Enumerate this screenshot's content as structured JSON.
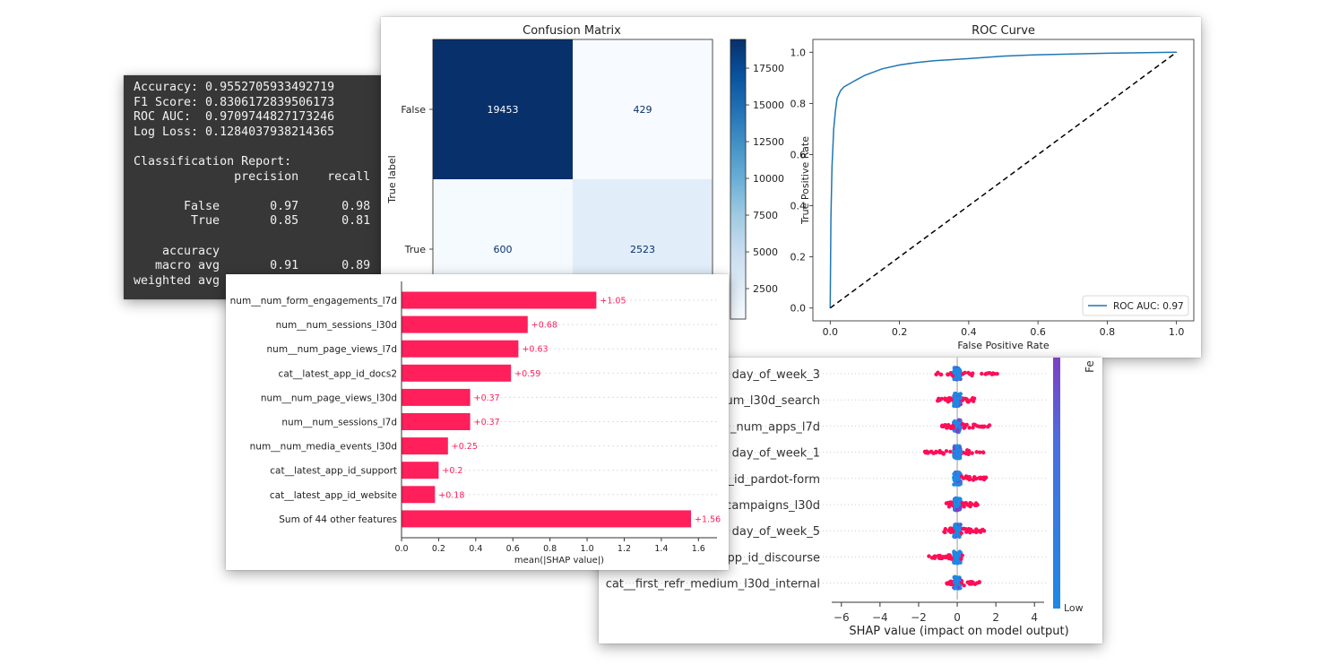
{
  "metrics_text": {
    "lines": [
      "Accuracy: 0.9552705933492719",
      "F1 Score: 0.8306172839506173",
      "ROC AUC:  0.9709744827173246",
      "Log Loss: 0.1284037938214365",
      "",
      "Classification Report:",
      "              precision    recall",
      "",
      "       False       0.97      0.98",
      "        True       0.85      0.81",
      "",
      "    accuracy",
      "   macro avg       0.91      0.89",
      "weighted avg"
    ]
  },
  "chart_data": [
    {
      "type": "heatmap",
      "title": "Confusion Matrix",
      "ylabel": "True label",
      "row_labels": [
        "False",
        "True"
      ],
      "matrix": [
        [
          19453,
          429
        ],
        [
          600,
          2523
        ]
      ],
      "colorbar": {
        "colormap": "Blues",
        "ticks": [
          2500,
          5000,
          7500,
          10000,
          12500,
          15000,
          17500
        ],
        "range": [
          429,
          19453
        ]
      }
    },
    {
      "type": "line",
      "title": "ROC Curve",
      "xlabel": "False Positive Rate",
      "ylabel": "True Positive Rate",
      "xlim": [
        -0.05,
        1.05
      ],
      "ylim": [
        -0.05,
        1.05
      ],
      "xticks": [
        "0.0",
        "0.2",
        "0.4",
        "0.6",
        "0.8",
        "1.0"
      ],
      "yticks": [
        "0.0",
        "0.2",
        "0.4",
        "0.6",
        "0.8",
        "1.0"
      ],
      "legend": "bottom-right",
      "series": [
        {
          "name": "ROC AUC: 0.97",
          "color": "#1f77b4",
          "x": [
            0,
            0.002,
            0.005,
            0.01,
            0.015,
            0.02,
            0.03,
            0.04,
            0.06,
            0.08,
            0.1,
            0.15,
            0.2,
            0.25,
            0.3,
            0.4,
            0.5,
            0.6,
            0.8,
            1.0
          ],
          "y": [
            0,
            0.35,
            0.55,
            0.7,
            0.77,
            0.82,
            0.85,
            0.865,
            0.88,
            0.895,
            0.91,
            0.935,
            0.95,
            0.96,
            0.967,
            0.975,
            0.985,
            0.99,
            0.996,
            1.0
          ]
        },
        {
          "name": "",
          "color": "#000000",
          "dashed": true,
          "x": [
            0,
            1
          ],
          "y": [
            0,
            1
          ]
        }
      ]
    },
    {
      "type": "scatter",
      "xlabel": "SHAP value (impact on model output)",
      "xlim": [
        -6.5,
        4.5
      ],
      "xticks": [
        "−6",
        "−4",
        "−2",
        "0",
        "2",
        "4"
      ],
      "colorbar_label": "Low",
      "colorbar_title": "Fe",
      "features": [
        {
          "label": "day_of_week_3",
          "min": -1.3,
          "max": 2.2
        },
        {
          "label": "um_l30d_search",
          "min": -1.1,
          "max": 0.9
        },
        {
          "label": "_num_apps_l7d",
          "min": -0.8,
          "max": 1.7
        },
        {
          "label": "day_of_week_1",
          "min": -1.7,
          "max": 1.4
        },
        {
          "label": "_id_pardot-form",
          "min": -0.2,
          "max": 1.5
        },
        {
          "label": "campaigns_l30d",
          "min": -0.6,
          "max": 1.3
        },
        {
          "label": "day_of_week_5",
          "min": -0.7,
          "max": 1.4
        },
        {
          "label": "pp_id_discourse",
          "min": -1.5,
          "max": 0.3
        },
        {
          "label": "cat__first_refr_medium_l30d_internal",
          "min": -0.6,
          "max": 1.2
        }
      ]
    },
    {
      "type": "bar",
      "orientation": "horizontal",
      "xlabel": "mean(|SHAP value|)",
      "xlim": [
        0,
        1.7
      ],
      "xticks": [
        "0.0",
        "0.2",
        "0.4",
        "0.6",
        "0.8",
        "1.0",
        "1.2",
        "1.4",
        "1.6"
      ],
      "bar_color": "#ff1f5b",
      "categories": [
        "num__num_form_engagements_l7d",
        "num__num_sessions_l30d",
        "num__num_page_views_l7d",
        "cat__latest_app_id_docs2",
        "num__num_page_views_l30d",
        "num__num_sessions_l7d",
        "num__num_media_events_l30d",
        "cat__latest_app_id_support",
        "cat__latest_app_id_website",
        "Sum of 44 other features"
      ],
      "values": [
        1.05,
        0.68,
        0.63,
        0.59,
        0.37,
        0.37,
        0.25,
        0.2,
        0.18,
        1.56
      ],
      "value_labels": [
        "+1.05",
        "+0.68",
        "+0.63",
        "+0.59",
        "+0.37",
        "+0.37",
        "+0.25",
        "+0.2",
        "+0.18",
        "+1.56"
      ]
    }
  ]
}
